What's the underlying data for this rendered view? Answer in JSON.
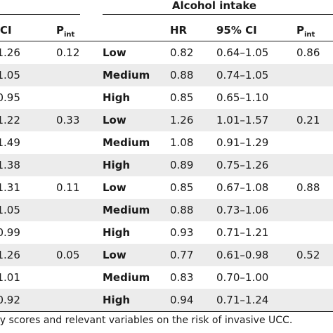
{
  "group_title": "Alcohol intake",
  "left_headers": {
    "ci": "CI",
    "pint": "P",
    "pint_sub": "int"
  },
  "right_headers": {
    "hr": "HR",
    "ci": "95% CI",
    "pint": "P",
    "pint_sub": "int"
  },
  "rows": [
    {
      "left_ci": "–1.26",
      "left_pint": "0.12",
      "level": "Low",
      "hr": "0.82",
      "ci": "0.64–1.05",
      "pint": "0.86"
    },
    {
      "left_ci": "–1.05",
      "left_pint": "",
      "level": "Medium",
      "hr": "0.88",
      "ci": "0.74–1.05",
      "pint": ""
    },
    {
      "left_ci": "–0.95",
      "left_pint": "",
      "level": "High",
      "hr": "0.85",
      "ci": "0.65–1.10",
      "pint": ""
    },
    {
      "left_ci": "–1.22",
      "left_pint": "0.33",
      "level": "Low",
      "hr": "1.26",
      "ci": "1.01–1.57",
      "pint": "0.21"
    },
    {
      "left_ci": "–1.49",
      "left_pint": "",
      "level": "Medium",
      "hr": "1.08",
      "ci": "0.91–1.29",
      "pint": ""
    },
    {
      "left_ci": "–1.38",
      "left_pint": "",
      "level": "High",
      "hr": "0.89",
      "ci": "0.75–1.26",
      "pint": ""
    },
    {
      "left_ci": "–1.31",
      "left_pint": "0.11",
      "level": "Low",
      "hr": "0.85",
      "ci": "0.67–1.08",
      "pint": "0.88"
    },
    {
      "left_ci": "–1.05",
      "left_pint": "",
      "level": "Medium",
      "hr": "0.88",
      "ci": "0.73–1.06",
      "pint": ""
    },
    {
      "left_ci": "–0.99",
      "left_pint": "",
      "level": "High",
      "hr": "0.93",
      "ci": "0.71–1.21",
      "pint": ""
    },
    {
      "left_ci": "–1.26",
      "left_pint": "0.05",
      "level": "Low",
      "hr": "0.77",
      "ci": "0.61–0.98",
      "pint": "0.52"
    },
    {
      "left_ci": "–1.01",
      "left_pint": "",
      "level": "Medium",
      "hr": "0.83",
      "ci": "0.70–1.00",
      "pint": ""
    },
    {
      "left_ci": "–0.92",
      "left_pint": "",
      "level": "High",
      "hr": "0.94",
      "ci": "0.71–1.24",
      "pint": ""
    }
  ],
  "caption": "ry scores and relevant variables on the risk of invasive UCC."
}
